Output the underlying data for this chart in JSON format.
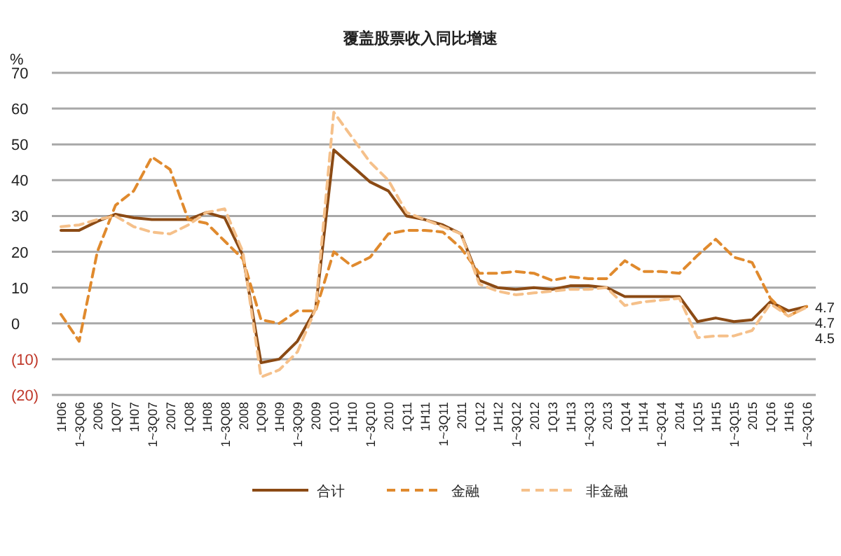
{
  "chart_data": {
    "type": "line",
    "title": "覆盖股票收入同比增速",
    "ylabel": "%",
    "categories": [
      "1H06",
      "1~3Q06",
      "2006",
      "1Q07",
      "1H07",
      "1~3Q07",
      "2007",
      "1Q08",
      "1H08",
      "1~3Q08",
      "2008",
      "1Q09",
      "1H09",
      "1~3Q09",
      "2009",
      "1Q10",
      "1H10",
      "1~3Q10",
      "2010",
      "1Q11",
      "1H11",
      "1~3Q11",
      "2011",
      "1Q12",
      "1H12",
      "1~3Q12",
      "2012",
      "1Q13",
      "1H13",
      "1~3Q13",
      "2013",
      "1Q14",
      "1H14",
      "1~3Q14",
      "2014",
      "1Q15",
      "1H15",
      "1~3Q15",
      "2015",
      "1Q16",
      "1H16",
      "1~3Q16"
    ],
    "series": [
      {
        "name": "合计",
        "color": "#8b4a14",
        "line_style": "solid",
        "values": [
          26,
          26,
          28.5,
          30.5,
          29.5,
          29,
          29,
          29,
          31,
          29.5,
          19,
          -11,
          -10,
          -5,
          4,
          48.5,
          44,
          39.5,
          37,
          30,
          29,
          27.5,
          25,
          12,
          10,
          9.5,
          10,
          9.5,
          10.5,
          10.5,
          10,
          7.5,
          7.5,
          7.5,
          7.5,
          0.5,
          1.5,
          0.5,
          1,
          6,
          3.5,
          4.7
        ],
        "value_labels": [
          null,
          null,
          null,
          null,
          null,
          null,
          null,
          null,
          null,
          null,
          null,
          null,
          null,
          null,
          null,
          null,
          null,
          null,
          null,
          null,
          null,
          null,
          null,
          null,
          null,
          null,
          null,
          null,
          null,
          null,
          null,
          null,
          null,
          null,
          null,
          null,
          null,
          null,
          null,
          null,
          null,
          "4.7"
        ]
      },
      {
        "name": "金融",
        "color": "#e08a2e",
        "line_style": "dashed",
        "values": [
          2.5,
          -5,
          20,
          33,
          37,
          46.5,
          43,
          29,
          28,
          23,
          18,
          1,
          0,
          3.5,
          3.5,
          20,
          16,
          18.5,
          25,
          26,
          26,
          25.5,
          21,
          14,
          14,
          14.5,
          14,
          12,
          13,
          12.5,
          12.5,
          17.5,
          14.5,
          14.5,
          14,
          19,
          23.5,
          18.5,
          17,
          7,
          2,
          4.7
        ],
        "value_labels": [
          null,
          null,
          null,
          null,
          null,
          null,
          null,
          null,
          null,
          null,
          null,
          null,
          null,
          null,
          null,
          null,
          null,
          null,
          null,
          null,
          null,
          null,
          null,
          null,
          null,
          null,
          null,
          null,
          null,
          null,
          null,
          null,
          null,
          null,
          null,
          null,
          null,
          null,
          null,
          null,
          null,
          "4.7"
        ]
      },
      {
        "name": "非金融",
        "color": "#f5c08a",
        "line_style": "dashed",
        "values": [
          27,
          27.5,
          29,
          30,
          27,
          25.5,
          25,
          27.5,
          31,
          32,
          20,
          -15,
          -13,
          -8,
          4,
          59,
          52,
          45,
          40,
          31,
          29,
          27,
          25,
          11,
          9,
          8,
          8.5,
          9,
          9.5,
          9.5,
          10,
          5,
          6,
          6.5,
          7,
          -4,
          -3.5,
          -3.5,
          -2,
          5.5,
          2,
          4.5
        ],
        "value_labels": [
          null,
          null,
          null,
          null,
          null,
          null,
          null,
          null,
          null,
          null,
          null,
          null,
          null,
          null,
          null,
          null,
          null,
          null,
          null,
          null,
          null,
          null,
          null,
          null,
          null,
          null,
          null,
          null,
          null,
          null,
          null,
          null,
          null,
          null,
          null,
          null,
          null,
          null,
          null,
          null,
          null,
          "4.5"
        ]
      }
    ],
    "ylim": [
      -20,
      70
    ],
    "yticks": [
      {
        "value": -20,
        "label": "(20)"
      },
      {
        "value": -10,
        "label": "(10)"
      },
      0,
      10,
      20,
      30,
      40,
      50,
      60,
      70
    ],
    "grid": "y",
    "legend": "bottom",
    "marker": "none"
  }
}
